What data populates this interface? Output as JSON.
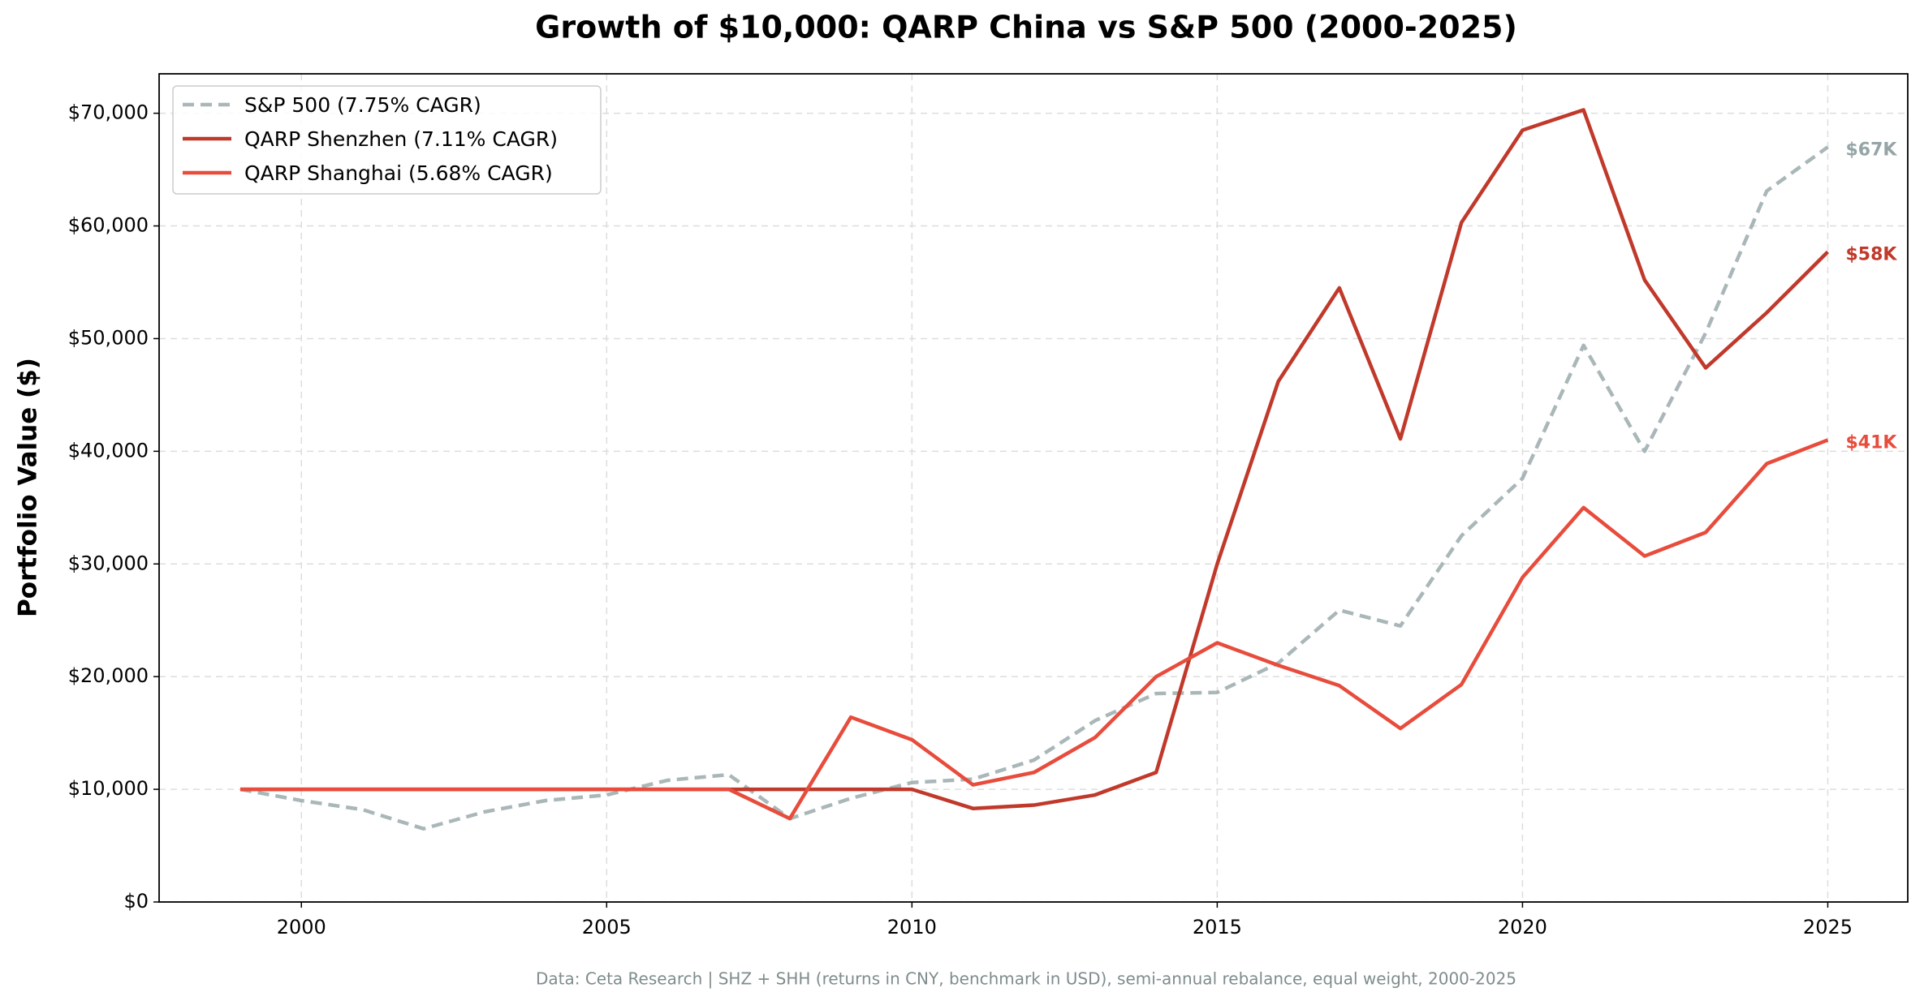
{
  "chart_data": {
    "type": "line",
    "title": "Growth of $10,000: QARP China vs S&P 500 (2000-2025)",
    "y_label": "Portfolio Value ($)",
    "footnote": "Data: Ceta Research | SHZ + SHH (returns in CNY, benchmark in USD), semi-annual rebalance, equal weight, 2000-2025",
    "x": [
      1999,
      2000,
      2001,
      2002,
      2003,
      2004,
      2005,
      2006,
      2007,
      2008,
      2009,
      2010,
      2011,
      2012,
      2013,
      2014,
      2015,
      2016,
      2017,
      2018,
      2019,
      2020,
      2021,
      2022,
      2023,
      2024,
      2025
    ],
    "series": [
      {
        "name": "S&P 500 (7.75% CAGR)",
        "color": "#95a5a6",
        "linestyle": "dashed",
        "end_label": "$67K",
        "values": [
          10000,
          9000,
          8200,
          6500,
          8000,
          9000,
          9500,
          10800,
          11300,
          7400,
          9200,
          10600,
          10900,
          12600,
          16100,
          18500,
          18600,
          21200,
          25900,
          24500,
          32500,
          37600,
          49400,
          40000,
          50500,
          63100,
          67000
        ]
      },
      {
        "name": "QARP Shenzhen (7.11% CAGR)",
        "color": "#c0392b",
        "linestyle": "solid",
        "end_label": "$58K",
        "values": [
          10000,
          10000,
          10000,
          10000,
          10000,
          10000,
          10000,
          10000,
          10000,
          10000,
          10000,
          10000,
          8300,
          8600,
          9500,
          11500,
          30000,
          46200,
          54500,
          41100,
          60300,
          68500,
          70300,
          55200,
          47400,
          52300,
          57700
        ]
      },
      {
        "name": "QARP Shanghai (5.68% CAGR)",
        "color": "#e74c3c",
        "linestyle": "solid",
        "end_label": "$41K",
        "values": [
          10000,
          10000,
          10000,
          10000,
          10000,
          10000,
          10000,
          10000,
          10000,
          7400,
          16400,
          14400,
          10400,
          11500,
          14600,
          20000,
          23000,
          21000,
          19200,
          15400,
          19300,
          28800,
          35000,
          30700,
          32800,
          38900,
          41000
        ]
      }
    ],
    "xlim": [
      1997.67,
      2026.31
    ],
    "xticks": [
      2000,
      2005,
      2010,
      2015,
      2020,
      2025
    ],
    "ylim": [
      0,
      73500
    ],
    "yticks": [
      {
        "value": 0,
        "label": "$0"
      },
      {
        "value": 10000,
        "label": "$10,000"
      },
      {
        "value": 20000,
        "label": "$20,000"
      },
      {
        "value": 30000,
        "label": "$30,000"
      },
      {
        "value": 40000,
        "label": "$40,000"
      },
      {
        "value": 50000,
        "label": "$50,000"
      },
      {
        "value": 60000,
        "label": "$60,000"
      },
      {
        "value": 70000,
        "label": "$70,000"
      }
    ],
    "grid": true,
    "legend": "upper left"
  }
}
